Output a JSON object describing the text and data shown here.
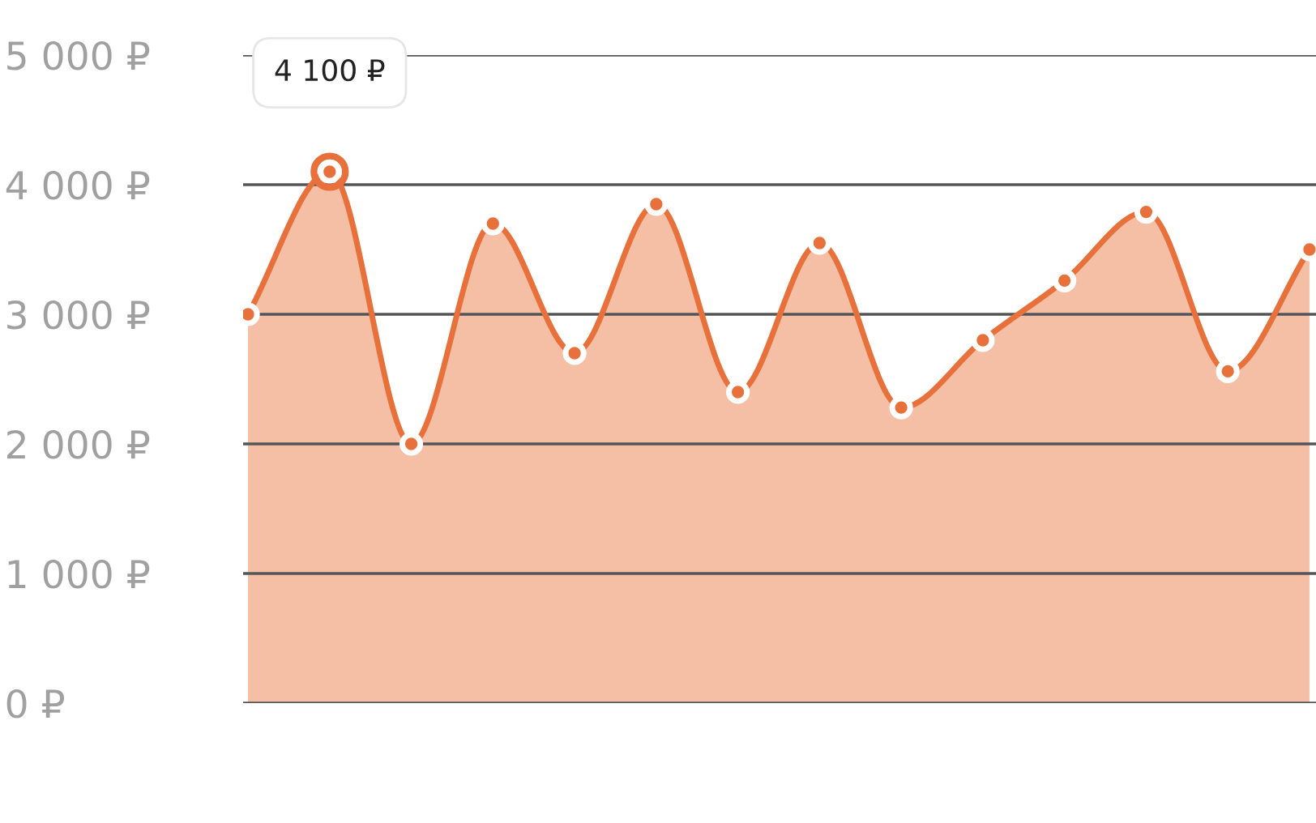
{
  "chart_data": {
    "type": "area",
    "categories": [
      null,
      null,
      null,
      null,
      null,
      null,
      null,
      null,
      null,
      null,
      null,
      null,
      null,
      null
    ],
    "series": [
      {
        "color": "#e8703a",
        "values": [
          3000,
          4100,
          2000,
          3700,
          2700,
          3850,
          2400,
          3550,
          2280,
          2800,
          3260,
          3790,
          2560,
          3500
        ]
      }
    ],
    "ylim": [
      0,
      5000
    ],
    "yticks": [
      {
        "value": 0,
        "label": "0 ₽"
      },
      {
        "value": 1000,
        "label": "1 000 ₽"
      },
      {
        "value": 2000,
        "label": "2 000 ₽"
      },
      {
        "value": 3000,
        "label": "3 000 ₽"
      },
      {
        "value": 4000,
        "label": "4 000 ₽"
      },
      {
        "value": 5000,
        "label": "5 000 ₽"
      }
    ],
    "grid": "y",
    "marker": "circle",
    "line_style": "solid",
    "tick_labels": "y",
    "annotations": [
      "4 100 ₽"
    ]
  }
}
